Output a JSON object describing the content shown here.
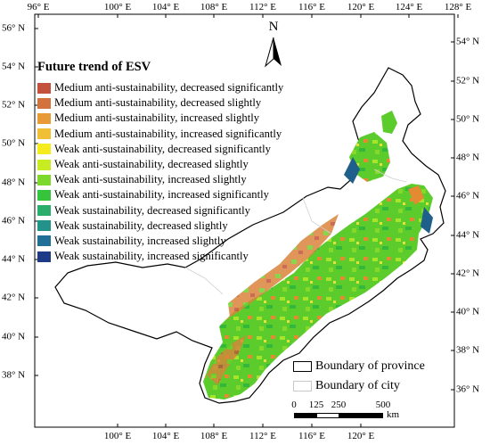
{
  "axes": {
    "top_lon": [
      "96° E",
      "100° E",
      "104° E",
      "108° E",
      "112° E",
      "116° E",
      "120° E",
      "124° E",
      "128° E"
    ],
    "bottom_lon": [
      "100° E",
      "104° E",
      "108° E",
      "112° E",
      "116° E",
      "120° E"
    ],
    "left_lat": [
      "56° N",
      "54° N",
      "52° N",
      "50° N",
      "48° N",
      "46° N",
      "44° N",
      "42° N",
      "40° N",
      "38° N"
    ],
    "right_lat": [
      "54° N",
      "52° N",
      "50° N",
      "48° N",
      "46° N",
      "44° N",
      "42° N",
      "40° N",
      "38° N",
      "36° N"
    ]
  },
  "north_arrow": {
    "letter": "N"
  },
  "legend": {
    "title": "Future trend of ESV",
    "items": [
      {
        "label": "Medium anti-sustainability, decreased significantly",
        "color": "#c2523c"
      },
      {
        "label": "Medium anti-sustainability, decreased slightly",
        "color": "#d2733e"
      },
      {
        "label": "Medium anti-sustainability, increased slightly",
        "color": "#e79a35"
      },
      {
        "label": "Medium anti-sustainability, increased significantly",
        "color": "#f0bf36"
      },
      {
        "label": "Weak anti-sustainability, decreased significantly",
        "color": "#f5ec1f"
      },
      {
        "label": "Weak anti-sustainability, decreased slightly",
        "color": "#c8ec22"
      },
      {
        "label": "Weak anti-sustainability, increased slightly",
        "color": "#7cd82a"
      },
      {
        "label": "Weak anti-sustainability, increased significantly",
        "color": "#36c43c"
      },
      {
        "label": "Weak sustainability, decreased significantly",
        "color": "#2bae6c"
      },
      {
        "label": "Weak sustainability, decreased slightly",
        "color": "#23938a"
      },
      {
        "label": "Weak sustainability, increased slightly",
        "color": "#1f6f96"
      },
      {
        "label": "Weak sustainability, increased significantly",
        "color": "#1c3a86"
      }
    ]
  },
  "boundaries": {
    "province": {
      "label": "Boundary of province"
    },
    "city": {
      "label": "Boundary of city"
    }
  },
  "scale_bar": {
    "ticks": [
      "0",
      "125",
      "250",
      "500"
    ],
    "unit": "km"
  }
}
